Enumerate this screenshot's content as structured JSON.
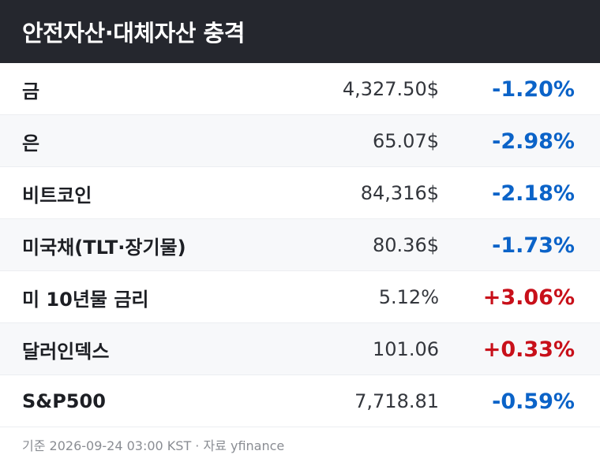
{
  "header": {
    "title": "안전자산·대체자산 충격"
  },
  "table": {
    "rows": [
      [
        "금",
        "4,327.50$",
        "-1.20%"
      ],
      [
        "은",
        "65.07$",
        "-2.98%"
      ],
      [
        "비트코인",
        "84,316$",
        "-2.18%"
      ],
      [
        "미국채(TLT·장기물)",
        "80.36$",
        "-1.73%"
      ],
      [
        "미 10년물 금리",
        "5.12%",
        "+3.06%"
      ],
      [
        "달러인덱스",
        "101.06",
        "+0.33%"
      ],
      [
        "S&P500",
        "7,718.81",
        "-0.59%"
      ]
    ]
  },
  "footer": {
    "note": "기준 2026-09-24 03:00 KST · 자료 yfinance"
  }
}
